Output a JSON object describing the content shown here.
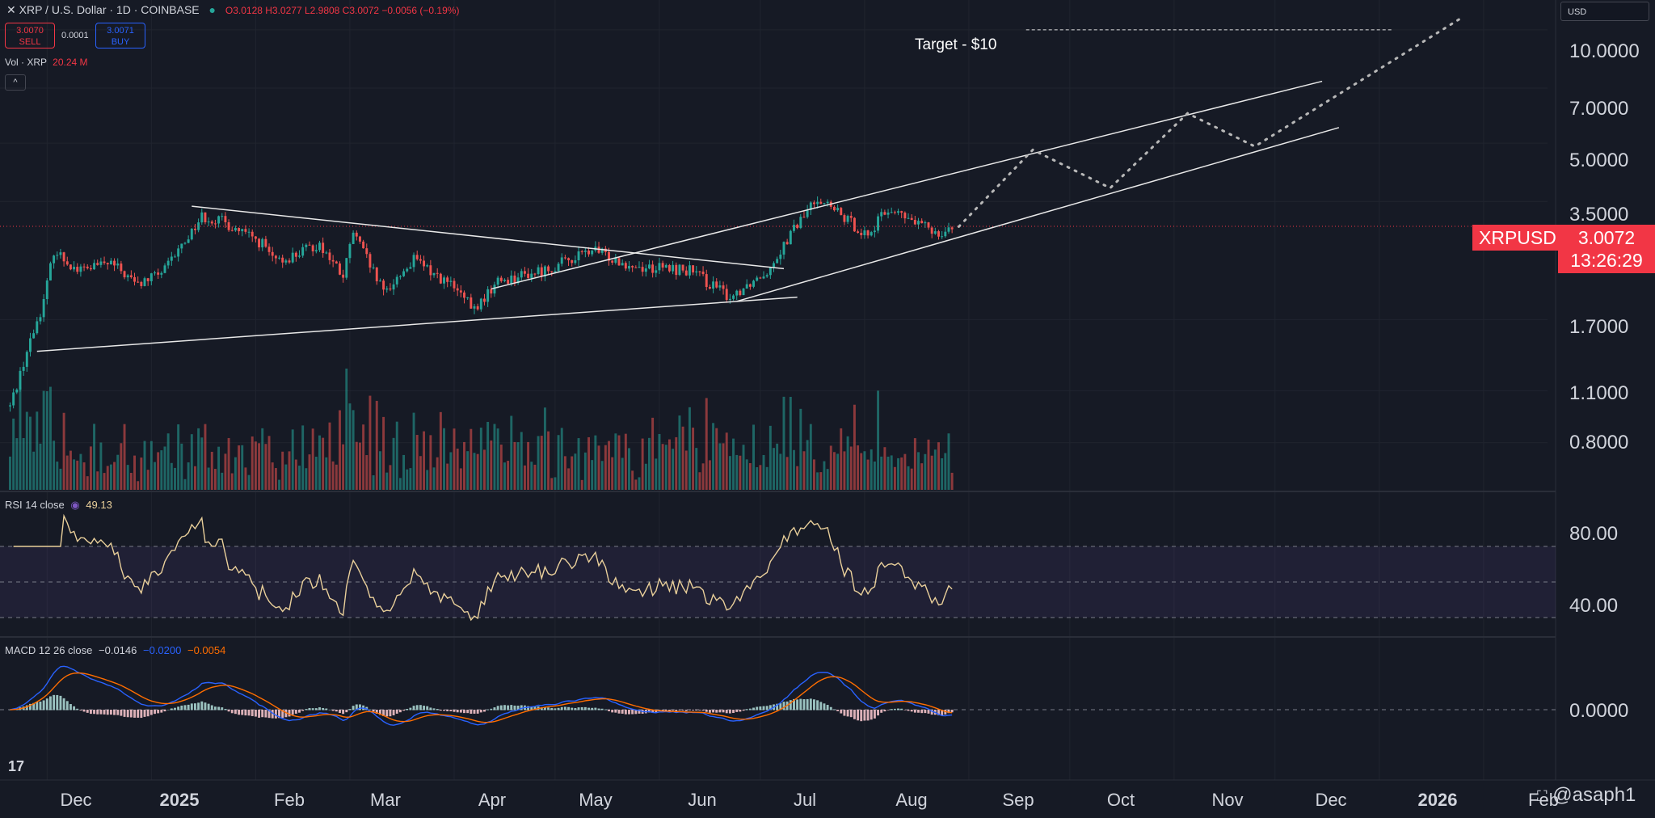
{
  "header": {
    "symbol": "XRP / U.S. Dollar · 1D · COINBASE",
    "ohlc": "O3.0128 H3.0277 L2.9808 C3.0072 −0.0056 (−0.19%)",
    "sell_price": "3.0070",
    "sell_label": "SELL",
    "spread": "0.0001",
    "buy_price": "3.0071",
    "buy_label": "BUY",
    "volume_label": "Vol · XRP",
    "volume_value": "20.24 M",
    "collapse_glyph": "^",
    "currency": "USD"
  },
  "annotation": {
    "target_label": "Target - $10"
  },
  "price_axis": {
    "labels": [
      "10.0000",
      "7.0000",
      "5.0000",
      "3.5000",
      "1.7000",
      "1.1000",
      "0.8000"
    ],
    "current_symbol": "XRPUSD",
    "current_price": "3.0072",
    "countdown": "13:26:29"
  },
  "rsi": {
    "label": "RSI 14 close",
    "value": "49.13",
    "axis": [
      "80.00",
      "40.00"
    ]
  },
  "macd": {
    "label": "MACD 12 26 close",
    "hist": "−0.0146",
    "macd": "−0.0200",
    "signal": "−0.0054",
    "axis": [
      "0.0000"
    ]
  },
  "time_axis": [
    "Dec",
    "2025",
    "Feb",
    "Mar",
    "Apr",
    "May",
    "Jun",
    "Jul",
    "Aug",
    "Sep",
    "Oct",
    "Nov",
    "Dec",
    "2026",
    "Feb"
  ],
  "branding": {
    "logo": "17",
    "watermark": "@asaph1"
  },
  "colors": {
    "background": "#161a25",
    "up": "#26a69a",
    "down": "#ef5350",
    "rsi_line": "#e9cf9a",
    "macd_line": "#2962ff",
    "signal_line": "#ff6d00",
    "price_tag": "#f23645"
  },
  "chart_data": {
    "type": "candlestick",
    "symbol": "XRPUSD",
    "interval": "1D",
    "scale": "log",
    "ylim": [
      0.6,
      12
    ],
    "price_ticks": [
      10,
      7,
      5,
      3.5,
      1.7,
      1.1,
      0.8
    ],
    "current_price": 3.0072,
    "price_anchors": [
      [
        "2024-11-20",
        1.0
      ],
      [
        "2024-11-25",
        1.4
      ],
      [
        "2024-11-30",
        1.9
      ],
      [
        "2024-12-03",
        2.6
      ],
      [
        "2024-12-10",
        2.3
      ],
      [
        "2024-12-20",
        2.4
      ],
      [
        "2024-12-28",
        2.1
      ],
      [
        "2025-01-05",
        2.3
      ],
      [
        "2025-01-16",
        3.2
      ],
      [
        "2025-01-22",
        3.1
      ],
      [
        "2025-02-03",
        2.7
      ],
      [
        "2025-02-07",
        2.4
      ],
      [
        "2025-02-20",
        2.7
      ],
      [
        "2025-02-27",
        2.2
      ],
      [
        "2025-03-02",
        2.9
      ],
      [
        "2025-03-11",
        2.0
      ],
      [
        "2025-03-20",
        2.45
      ],
      [
        "2025-03-31",
        2.1
      ],
      [
        "2025-04-07",
        1.8
      ],
      [
        "2025-04-14",
        2.15
      ],
      [
        "2025-04-28",
        2.3
      ],
      [
        "2025-05-12",
        2.6
      ],
      [
        "2025-05-25",
        2.35
      ],
      [
        "2025-06-10",
        2.3
      ],
      [
        "2025-06-22",
        1.95
      ],
      [
        "2025-07-03",
        2.3
      ],
      [
        "2025-07-11",
        2.95
      ],
      [
        "2025-07-18",
        3.6
      ],
      [
        "2025-07-25",
        3.2
      ],
      [
        "2025-08-02",
        2.85
      ],
      [
        "2025-08-08",
        3.35
      ],
      [
        "2025-08-15",
        3.1
      ],
      [
        "2025-08-23",
        2.9
      ],
      [
        "2025-08-27",
        3.01
      ]
    ],
    "trendlines": [
      {
        "name": "triangle-top",
        "from": [
          "2025-01-13",
          3.4
        ],
        "to": [
          "2025-07-08",
          2.32
        ]
      },
      {
        "name": "triangle-bottom",
        "from": [
          "2024-11-28",
          1.4
        ],
        "to": [
          "2025-07-12",
          1.95
        ]
      },
      {
        "name": "channel-upper",
        "from": [
          "2025-04-12",
          2.05
        ],
        "to": [
          "2025-12-15",
          7.3
        ]
      },
      {
        "name": "channel-lower",
        "from": [
          "2025-06-24",
          1.9
        ],
        "to": [
          "2025-12-20",
          5.5
        ]
      }
    ],
    "projection": [
      [
        "2025-08-29",
        3.0
      ],
      [
        "2025-09-20",
        4.8
      ],
      [
        "2025-10-13",
        3.8
      ],
      [
        "2025-11-05",
        6.0
      ],
      [
        "2025-11-25",
        4.9
      ],
      [
        "2026-01-25",
        10.7
      ]
    ],
    "target": {
      "label": "Target - $10",
      "price": 10.0,
      "from": "2025-09-18",
      "to": "2026-01-05"
    },
    "volume_label": "Vol · XRP",
    "rsi": {
      "period": 14,
      "value": 49.13,
      "upper": 70,
      "middle": 50,
      "lower": 30,
      "ticks": [
        80,
        40
      ]
    },
    "macd": {
      "fast": 12,
      "slow": 26,
      "hist": -0.0146,
      "macd": -0.02,
      "signal": -0.0054,
      "ticks": [
        0.0
      ]
    },
    "x_ticks": [
      "Dec",
      "2025",
      "Feb",
      "Mar",
      "Apr",
      "May",
      "Jun",
      "Jul",
      "Aug",
      "Sep",
      "Oct",
      "Nov",
      "Dec",
      "2026",
      "Feb"
    ],
    "x_start": "2024-11-17",
    "x_end": "2026-02-20",
    "grid": true
  }
}
